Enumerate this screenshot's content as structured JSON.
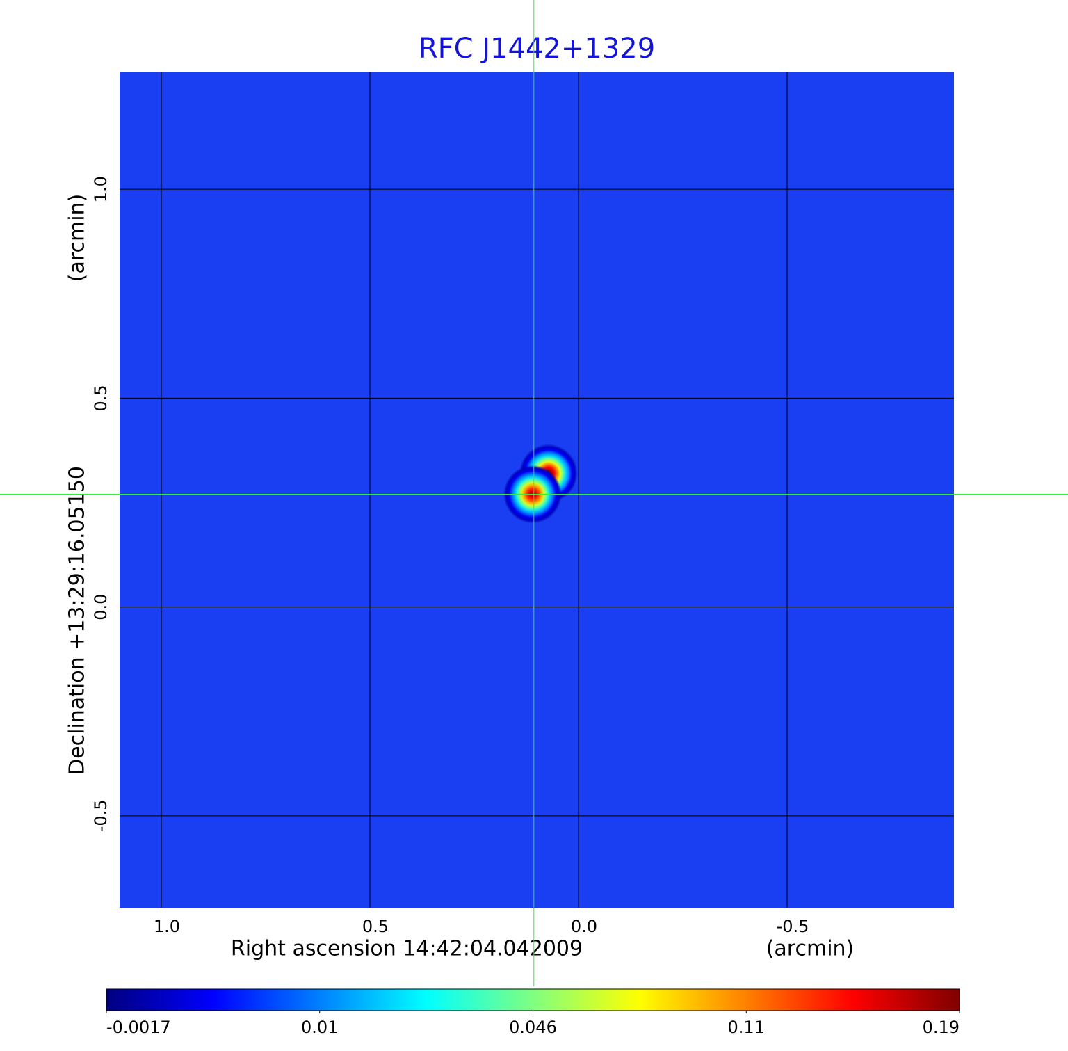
{
  "chart_data": {
    "type": "image",
    "title": "RFC J1442+1329",
    "x_label": "Right ascension  14:42:04.042009",
    "x_unit": "(arcmin)",
    "y_label": "Declination  +13:29:16.05150",
    "y_unit": "(arcmin)",
    "xlim": [
      1.1,
      -0.9
    ],
    "ylim": [
      -0.72,
      1.28
    ],
    "xticks": [
      {
        "value": 1,
        "label": "1.0"
      },
      0.5,
      {
        "value": 0,
        "label": "0.0"
      },
      -0.5
    ],
    "yticks": [
      {
        "value": -0.5,
        "label": "-0.5"
      },
      {
        "value": 0,
        "label": "0.0"
      },
      0.5,
      {
        "value": 1,
        "label": "1.0"
      }
    ],
    "grid": true,
    "colormap": "jet",
    "colorbar_ticks": [
      -0.0017,
      0.01,
      0.046,
      0.11,
      0.19
    ],
    "components": [
      {
        "x": 0.072,
        "y": 0.32,
        "peak": 0.19
      },
      {
        "x": 0.11,
        "y": 0.27,
        "peak": 0.17
      }
    ],
    "crosshair": {
      "x": 0.107,
      "y": 0.27
    }
  }
}
